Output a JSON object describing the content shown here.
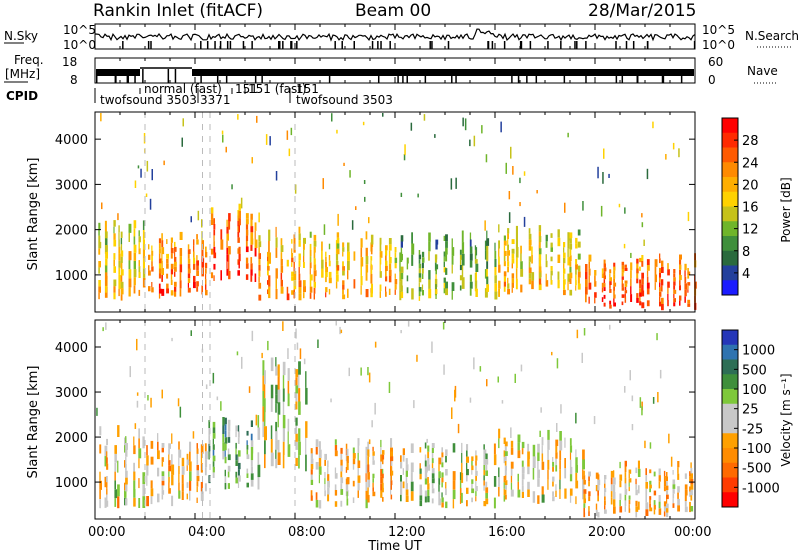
{
  "header": {
    "station": "Rankin Inlet (fitACF)",
    "beam": "Beam 00",
    "date": "28/Mar/2015"
  },
  "noise_panel": {
    "left_label": "N.Sky",
    "right_label": "N.Search",
    "left_ticks": [
      "10^5",
      "10^0"
    ],
    "right_ticks": [
      "10^5",
      "10^0"
    ]
  },
  "freq_panel": {
    "left_label_line1": "Freq.",
    "left_label_line2": "[MHz]",
    "right_label": "Nave",
    "left_ticks": [
      "18",
      "8"
    ],
    "right_ticks": [
      "60",
      "0"
    ]
  },
  "cpid": {
    "label": "CPID",
    "segments": [
      {
        "text": "twofsound 3503"
      },
      {
        "text": "normal (fast)"
      },
      {
        "text": "3371"
      },
      {
        "text": "151"
      },
      {
        "text": "151 (fast)"
      },
      {
        "text": "151"
      },
      {
        "text": "twofsound 3503"
      }
    ]
  },
  "x_axis": {
    "label": "Time UT",
    "tick_labels": [
      "00:00",
      "04:00",
      "08:00",
      "12:00",
      "16:00",
      "20:00",
      "00:00"
    ]
  },
  "power_panel": {
    "ylabel": "Slant Range [km]",
    "y_ticks": [
      "1000",
      "2000",
      "3000",
      "4000"
    ],
    "colorbar_label": "Power [dB]",
    "colorbar_ticks": [
      "4",
      "8",
      "12",
      "16",
      "20",
      "24",
      "28"
    ],
    "colors": [
      "#1b1bff",
      "#23409c",
      "#2a6a3d",
      "#3f8f3b",
      "#6fb52a",
      "#c6c21a",
      "#ffd200",
      "#ffae00",
      "#ff8a00",
      "#ff5a00",
      "#ff2a00",
      "#ff0000"
    ]
  },
  "velocity_panel": {
    "ylabel": "Slant Range [km]",
    "y_ticks": [
      "1000",
      "2000",
      "3000",
      "4000"
    ],
    "colorbar_label": "Velocity [m s⁻¹]",
    "colorbar_ticks": [
      "1000",
      "500",
      "100",
      "25",
      "-25",
      "-100",
      "-500",
      "-1000"
    ],
    "colors": [
      "#2536b8",
      "#2f73b0",
      "#2e6e55",
      "#3f8f3b",
      "#7ec83a",
      "#c8c8c8",
      "#c8c8c8",
      "#ffa000",
      "#ff8c00",
      "#ff6a00",
      "#ff3b00",
      "#ff0000"
    ]
  },
  "chart_data": [
    {
      "type": "heatmap",
      "title": "Rankin Inlet (fitACF) Beam 00 28/Mar/2015",
      "xlabel": "Time UT",
      "ylabel": "Slant Range [km]",
      "xlim": [
        0,
        24
      ],
      "ylim": [
        180,
        4600
      ],
      "z_label": "Power [dB]",
      "z_range": [
        0,
        32
      ],
      "regions": [
        {
          "t_start": 0.0,
          "t_end": 2.0,
          "range_low": 500,
          "range_high": 2100,
          "value": 20
        },
        {
          "t_start": 2.0,
          "t_end": 4.5,
          "range_low": 550,
          "range_high": 1800,
          "value": 26
        },
        {
          "t_start": 4.5,
          "t_end": 6.5,
          "range_low": 900,
          "range_high": 2400,
          "value": 28
        },
        {
          "t_start": 6.5,
          "t_end": 8.5,
          "range_low": 500,
          "range_high": 1900,
          "value": 24
        },
        {
          "t_start": 8.5,
          "t_end": 12.0,
          "range_low": 500,
          "range_high": 1800,
          "value": 22
        },
        {
          "t_start": 12.0,
          "t_end": 16.0,
          "range_low": 500,
          "range_high": 1800,
          "value": 14
        },
        {
          "t_start": 16.0,
          "t_end": 19.5,
          "range_low": 600,
          "range_high": 2000,
          "value": 20
        },
        {
          "t_start": 19.5,
          "t_end": 24.0,
          "range_low": 300,
          "range_high": 1300,
          "value": 28
        }
      ]
    },
    {
      "type": "heatmap",
      "xlabel": "Time UT",
      "ylabel": "Slant Range [km]",
      "xlim": [
        0,
        24
      ],
      "ylim": [
        180,
        4600
      ],
      "z_label": "Velocity [m s⁻¹]",
      "z_range": [
        -1000,
        1000
      ],
      "regions": [
        {
          "t_start": 0.0,
          "t_end": 2.0,
          "range_low": 500,
          "range_high": 2100,
          "value": -100
        },
        {
          "t_start": 2.0,
          "t_end": 4.5,
          "range_low": 550,
          "range_high": 1900,
          "value": -200
        },
        {
          "t_start": 4.5,
          "t_end": 6.5,
          "range_low": 900,
          "range_high": 2300,
          "value": 300
        },
        {
          "t_start": 6.5,
          "t_end": 8.5,
          "range_low": 1300,
          "range_high": 3600,
          "value": 50
        },
        {
          "t_start": 8.5,
          "t_end": 12.0,
          "range_low": 500,
          "range_high": 1800,
          "value": -150
        },
        {
          "t_start": 12.0,
          "t_end": 16.0,
          "range_low": 500,
          "range_high": 1700,
          "value": 0
        },
        {
          "t_start": 16.0,
          "t_end": 19.5,
          "range_low": 600,
          "range_high": 2000,
          "value": -80
        },
        {
          "t_start": 19.5,
          "t_end": 24.0,
          "range_low": 300,
          "range_high": 1300,
          "value": -200
        }
      ]
    }
  ]
}
